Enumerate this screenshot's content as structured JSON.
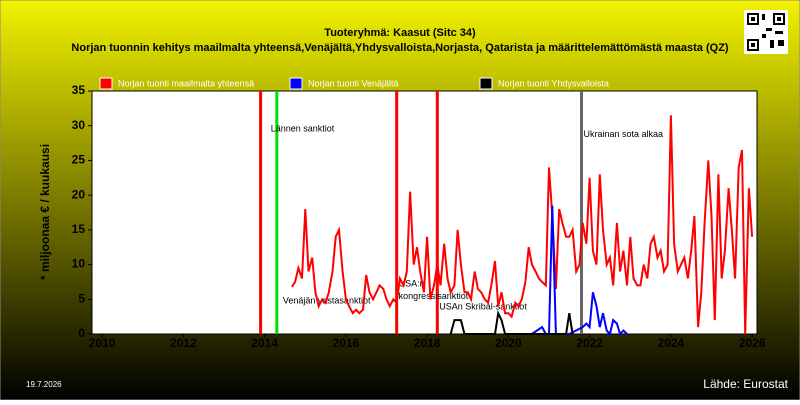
{
  "chart_data": {
    "type": "line",
    "title": "Tuoteryhmä: Kaasut (Sitc 34)",
    "subtitle": "Norjan tuonnin kehitys maailmalta yhteensä,Venäjältä,Yhdysvalloista,Norjasta, Qatarista ja määrittelemättömästä maasta (QZ)",
    "y_label": "* miljoonaa € / kuukausi",
    "date": "19.7.2026",
    "source": "Lähde: Eurostat",
    "xlim": [
      2009.75,
      2026.12
    ],
    "xticks": [
      2010,
      2012,
      2014,
      2016,
      2018,
      2020,
      2022,
      2024,
      2026
    ],
    "ylim": [
      0,
      35
    ],
    "yticks": [
      0,
      5,
      10,
      15,
      20,
      25,
      30,
      35
    ],
    "series": [
      {
        "name": "Norjan tuonti maailmalta yhteensä",
        "color": "#ff0000",
        "x": [
          2014.67,
          2014.75,
          2014.83,
          2014.92,
          2015.0,
          2015.08,
          2015.17,
          2015.25,
          2015.33,
          2015.42,
          2015.5,
          2015.58,
          2015.67,
          2015.75,
          2015.83,
          2015.92,
          2016.0,
          2016.08,
          2016.17,
          2016.25,
          2016.33,
          2016.42,
          2016.5,
          2016.58,
          2016.67,
          2016.75,
          2016.83,
          2016.92,
          2017.0,
          2017.08,
          2017.17,
          2017.25,
          2017.33,
          2017.42,
          2017.5,
          2017.58,
          2017.67,
          2017.75,
          2017.83,
          2017.92,
          2018.0,
          2018.08,
          2018.17,
          2018.25,
          2018.33,
          2018.42,
          2018.5,
          2018.58,
          2018.67,
          2018.75,
          2018.83,
          2018.92,
          2019.0,
          2019.08,
          2019.17,
          2019.25,
          2019.33,
          2019.42,
          2019.5,
          2019.58,
          2019.67,
          2019.75,
          2019.83,
          2019.92,
          2020.0,
          2020.08,
          2020.17,
          2020.25,
          2020.33,
          2020.42,
          2020.5,
          2020.58,
          2020.67,
          2020.75,
          2020.83,
          2020.92,
          2021.0,
          2021.08,
          2021.17,
          2021.25,
          2021.33,
          2021.42,
          2021.5,
          2021.58,
          2021.67,
          2021.75,
          2021.83,
          2021.92,
          2022.0,
          2022.08,
          2022.17,
          2022.25,
          2022.33,
          2022.42,
          2022.5,
          2022.58,
          2022.67,
          2022.75,
          2022.83,
          2022.92,
          2023.0,
          2023.08,
          2023.17,
          2023.25,
          2023.33,
          2023.42,
          2023.5,
          2023.58,
          2023.67,
          2023.75,
          2023.83,
          2023.92,
          2024.0,
          2024.08,
          2024.17,
          2024.25,
          2024.33,
          2024.42,
          2024.5,
          2024.58,
          2024.67,
          2024.75,
          2024.83,
          2024.92,
          2025.0,
          2025.08,
          2025.17,
          2025.25,
          2025.33,
          2025.42,
          2025.5,
          2025.58,
          2025.67,
          2025.75,
          2025.83,
          2025.92,
          2026.0
        ],
        "values": [
          6.8,
          7.5,
          9.5,
          8,
          18,
          9,
          11,
          6,
          4,
          5,
          4.5,
          6,
          9,
          14,
          15,
          9,
          5,
          4,
          3,
          3.5,
          3,
          3.5,
          8.5,
          6,
          5,
          6,
          7,
          6.5,
          5,
          4,
          5,
          4.5,
          8,
          7,
          9,
          20.5,
          10,
          12.5,
          9,
          6,
          14,
          5,
          7,
          10,
          7,
          13,
          8,
          6,
          7,
          15,
          10,
          6,
          6,
          5,
          9,
          6.5,
          6,
          5,
          4.5,
          7,
          10.5,
          4,
          6,
          3,
          3,
          2.5,
          4.5,
          4,
          5,
          7.5,
          12.5,
          10,
          9,
          8,
          7.5,
          7,
          24,
          17,
          6.5,
          18,
          16,
          14,
          14,
          15,
          9,
          10,
          16,
          13,
          22.5,
          12,
          10,
          23,
          15,
          10,
          11,
          7,
          16,
          9,
          12,
          7,
          14,
          8,
          7,
          7,
          10,
          8,
          13,
          14,
          11,
          12,
          9,
          10,
          31.5,
          13,
          9,
          10,
          11,
          8,
          12,
          17,
          1,
          6,
          16,
          25,
          17,
          2,
          23,
          8,
          12,
          21,
          15,
          8,
          24,
          26.5,
          0,
          21,
          14
        ]
      },
      {
        "name": "Norjan tuonti Venäjältä",
        "color": "#0000ff",
        "x": [
          2020.58,
          2020.83,
          2020.92,
          2021.0,
          2021.08,
          2021.17,
          2021.5,
          2021.83,
          2021.92,
          2022.0,
          2022.08,
          2022.17,
          2022.25,
          2022.33,
          2022.42,
          2022.5,
          2022.58,
          2022.67,
          2022.75,
          2022.83,
          2022.92
        ],
        "values": [
          0,
          1,
          0,
          0,
          18.5,
          0,
          0,
          1,
          1.5,
          1,
          6,
          4,
          1,
          3,
          0.5,
          0,
          2,
          1.5,
          0,
          0.5,
          0
        ]
      },
      {
        "name": "Norjan tuonti Yhdysvalloista",
        "color": "#000000",
        "x": [
          2018.58,
          2018.67,
          2018.83,
          2018.92,
          2019.67,
          2019.75,
          2019.83,
          2019.92,
          2021.42,
          2021.5,
          2021.58
        ],
        "values": [
          0,
          2,
          2,
          0,
          0,
          3,
          2,
          0,
          0,
          3,
          0
        ]
      }
    ],
    "vlines": [
      {
        "x": 2013.9,
        "color": "#ff0000"
      },
      {
        "x": 2014.3,
        "color": "#00dd00"
      },
      {
        "x": 2017.25,
        "color": "#ff0000"
      },
      {
        "x": 2018.25,
        "color": "#ff0000"
      },
      {
        "x": 2021.8,
        "color": "#666666"
      }
    ],
    "annotations": [
      {
        "label": "Lännen sanktiot",
        "x": 2014.1,
        "y": 29.5
      },
      {
        "label": "Venäjän vastasanktiot",
        "x": 2014.4,
        "y": 4.7
      },
      {
        "label": "USA:n",
        "x": 2017.25,
        "y": 7.2
      },
      {
        "label": "kongressisanktiot",
        "x": 2017.25,
        "y": 5.4
      },
      {
        "label": "USAn Skribal-sanktiot",
        "x": 2018.25,
        "y": 3.9
      },
      {
        "label": "Ukrainan sota alkaa",
        "x": 2021.8,
        "y": 28.7
      }
    ]
  }
}
